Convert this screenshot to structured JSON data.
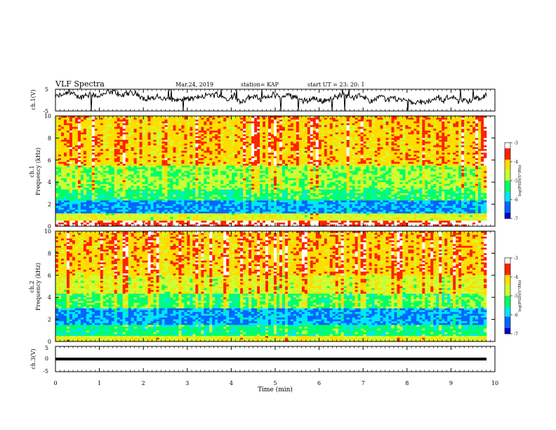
{
  "header": {
    "title": "VLF Spectra",
    "date": "Mar.24, 2019",
    "station": "station= KAP",
    "start": "start  UT =  23: 20: 1"
  },
  "colors": {
    "colormap": [
      "#000000",
      "#0000cc",
      "#0066ff",
      "#00e5ff",
      "#00ff66",
      "#ccff33",
      "#ffdd00",
      "#ff2200",
      "#ffffff"
    ],
    "trace": "#000000"
  },
  "chart_data": [
    {
      "type": "line",
      "ylabel": "ch.1(V)",
      "ylim": [
        -5,
        5
      ],
      "yticks": [
        "5",
        "-5"
      ],
      "xlim": [
        0,
        10
      ],
      "series": [
        {
          "description_level": 1.2,
          "noise_amplitude": 2.2
        }
      ]
    },
    {
      "type": "heatmap",
      "ylabel": "ch.1\nFrequency (kHz)",
      "ylim": [
        0,
        10
      ],
      "yticks": [
        "0",
        "2",
        "4",
        "6",
        "8",
        "10"
      ],
      "xlim": [
        0,
        10
      ],
      "colorbar": {
        "range": [
          -7,
          -3
        ],
        "ticks": [
          "-3",
          "-4",
          "-5",
          "-6",
          "-7"
        ],
        "label": "log(PSD)(V²/Hz)"
      },
      "bands": [
        {
          "from": 0,
          "to": 0.5,
          "level": -3.3
        },
        {
          "from": 0.5,
          "to": 1.2,
          "level": -4.6
        },
        {
          "from": 1.2,
          "to": 2.4,
          "level": -6.2
        },
        {
          "from": 2.4,
          "to": 3.3,
          "level": -5.3
        },
        {
          "from": 3.3,
          "to": 5.5,
          "level": -4.9
        },
        {
          "from": 5.5,
          "to": 10,
          "level": -4.1
        }
      ]
    },
    {
      "type": "heatmap",
      "ylabel": "ch.2\nFrequency (kHz)",
      "ylim": [
        0,
        10
      ],
      "yticks": [
        "0",
        "2",
        "4",
        "6",
        "8",
        "10"
      ],
      "xlim": [
        0,
        10
      ],
      "colorbar": {
        "range": [
          -7,
          -3
        ],
        "ticks": [
          "-3",
          "-4",
          "-5",
          "-6",
          "-7"
        ],
        "label": "log(PSD)(V²/Hz)"
      },
      "bands": [
        {
          "from": 0,
          "to": 0.5,
          "level": -4.5
        },
        {
          "from": 0.5,
          "to": 1.5,
          "level": -5.4
        },
        {
          "from": 1.5,
          "to": 3.0,
          "level": -6.2
        },
        {
          "from": 3.0,
          "to": 4.3,
          "level": -5.2
        },
        {
          "from": 4.3,
          "to": 6.0,
          "level": -4.6
        },
        {
          "from": 6.0,
          "to": 10,
          "level": -4.1
        }
      ]
    },
    {
      "type": "line",
      "ylabel": "ch.3(V)",
      "ylim": [
        -5,
        5
      ],
      "yticks": [
        "5",
        "0",
        "-5"
      ],
      "xlim": [
        0,
        10
      ],
      "xlabel": "Time (min)",
      "xticks": [
        "0",
        "1",
        "2",
        "3",
        "4",
        "5",
        "6",
        "7",
        "8",
        "9",
        "10"
      ],
      "series": [
        {
          "constant": 0
        }
      ]
    }
  ]
}
